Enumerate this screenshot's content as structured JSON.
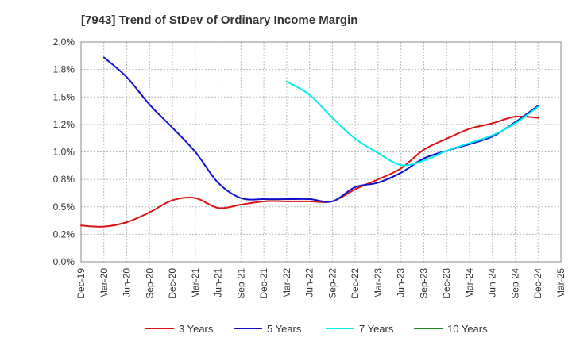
{
  "chart_data": {
    "type": "line",
    "title": "[7943]  Trend of StDev of Ordinary Income Margin",
    "xlabel": "",
    "ylabel": "",
    "ylim": [
      0,
      2.0
    ],
    "y_ticks": [
      {
        "value": 0.0,
        "label": "0.0%"
      },
      {
        "value": 0.25,
        "label": "0.2%"
      },
      {
        "value": 0.5,
        "label": "0.5%"
      },
      {
        "value": 0.75,
        "label": "0.8%"
      },
      {
        "value": 1.0,
        "label": "1.0%"
      },
      {
        "value": 1.25,
        "label": "1.2%"
      },
      {
        "value": 1.5,
        "label": "1.5%"
      },
      {
        "value": 1.75,
        "label": "1.8%"
      },
      {
        "value": 2.0,
        "label": "2.0%"
      }
    ],
    "categories": [
      "Dec-19",
      "Mar-20",
      "Jun-20",
      "Sep-20",
      "Dec-20",
      "Mar-21",
      "Jun-21",
      "Sep-21",
      "Dec-21",
      "Mar-22",
      "Jun-22",
      "Sep-22",
      "Dec-22",
      "Mar-23",
      "Jun-23",
      "Sep-23",
      "Dec-23",
      "Mar-24",
      "Jun-24",
      "Sep-24",
      "Dec-24",
      "Mar-25"
    ],
    "grid": true,
    "legend_position": "bottom",
    "series": [
      {
        "name": "3 Years",
        "color": "#dd1111",
        "values": [
          0.33,
          0.32,
          0.36,
          0.45,
          0.56,
          0.58,
          0.49,
          0.52,
          0.55,
          0.55,
          0.55,
          0.55,
          0.66,
          0.75,
          0.85,
          1.02,
          1.12,
          1.21,
          1.26,
          1.32,
          1.31,
          null
        ]
      },
      {
        "name": "5 Years",
        "color": "#1111cc",
        "values": [
          null,
          1.86,
          1.68,
          1.43,
          1.22,
          1.0,
          0.72,
          0.58,
          0.57,
          0.57,
          0.57,
          0.55,
          0.68,
          0.72,
          0.81,
          0.94,
          1.01,
          1.07,
          1.14,
          1.27,
          1.42,
          null
        ]
      },
      {
        "name": "7 Years",
        "color": "#00eeee",
        "values": [
          null,
          null,
          null,
          null,
          null,
          null,
          null,
          null,
          null,
          1.64,
          1.52,
          1.31,
          1.12,
          0.99,
          0.88,
          0.92,
          1.01,
          1.08,
          1.15,
          1.26,
          1.41,
          null
        ]
      },
      {
        "name": "10 Years",
        "color": "#228822",
        "values": [
          null,
          null,
          null,
          null,
          null,
          null,
          null,
          null,
          null,
          null,
          null,
          null,
          null,
          null,
          null,
          null,
          null,
          null,
          null,
          null,
          null,
          null
        ]
      }
    ]
  }
}
